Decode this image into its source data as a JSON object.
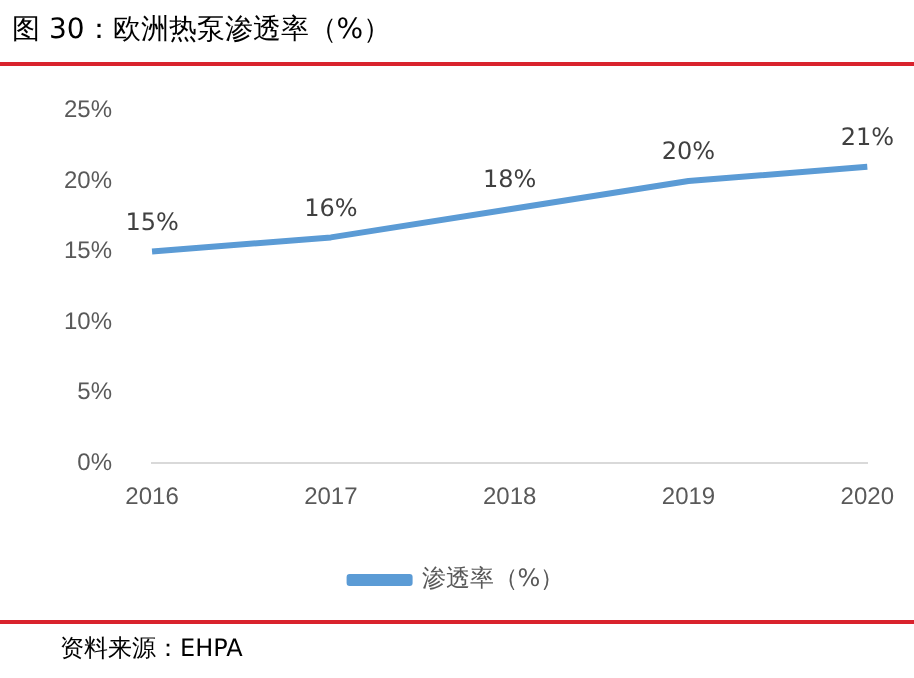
{
  "chart_data": {
    "type": "line",
    "title": "图 30：欧洲热泵渗透率（%）",
    "annotations": [
      "资料来源：EHPA"
    ],
    "categories": [
      "2016",
      "2017",
      "2018",
      "2019",
      "2020"
    ],
    "series": [
      {
        "name": "渗透率（%）",
        "color": "#5b9bd5",
        "values": [
          15,
          16,
          18,
          20,
          21
        ],
        "value_labels": [
          "15%",
          "16%",
          "18%",
          "20%",
          "21%"
        ]
      }
    ],
    "ylim": [
      0,
      25
    ],
    "yticks": [
      {
        "value": 0,
        "label": "0%"
      },
      {
        "value": 5,
        "label": "5%"
      },
      {
        "value": 10,
        "label": "10%"
      },
      {
        "value": 15,
        "label": "15%"
      },
      {
        "value": 20,
        "label": "20%"
      },
      {
        "value": 25,
        "label": "25%"
      }
    ],
    "grid": false,
    "legend": "bottom",
    "marker": "none",
    "line_style": "solid"
  }
}
